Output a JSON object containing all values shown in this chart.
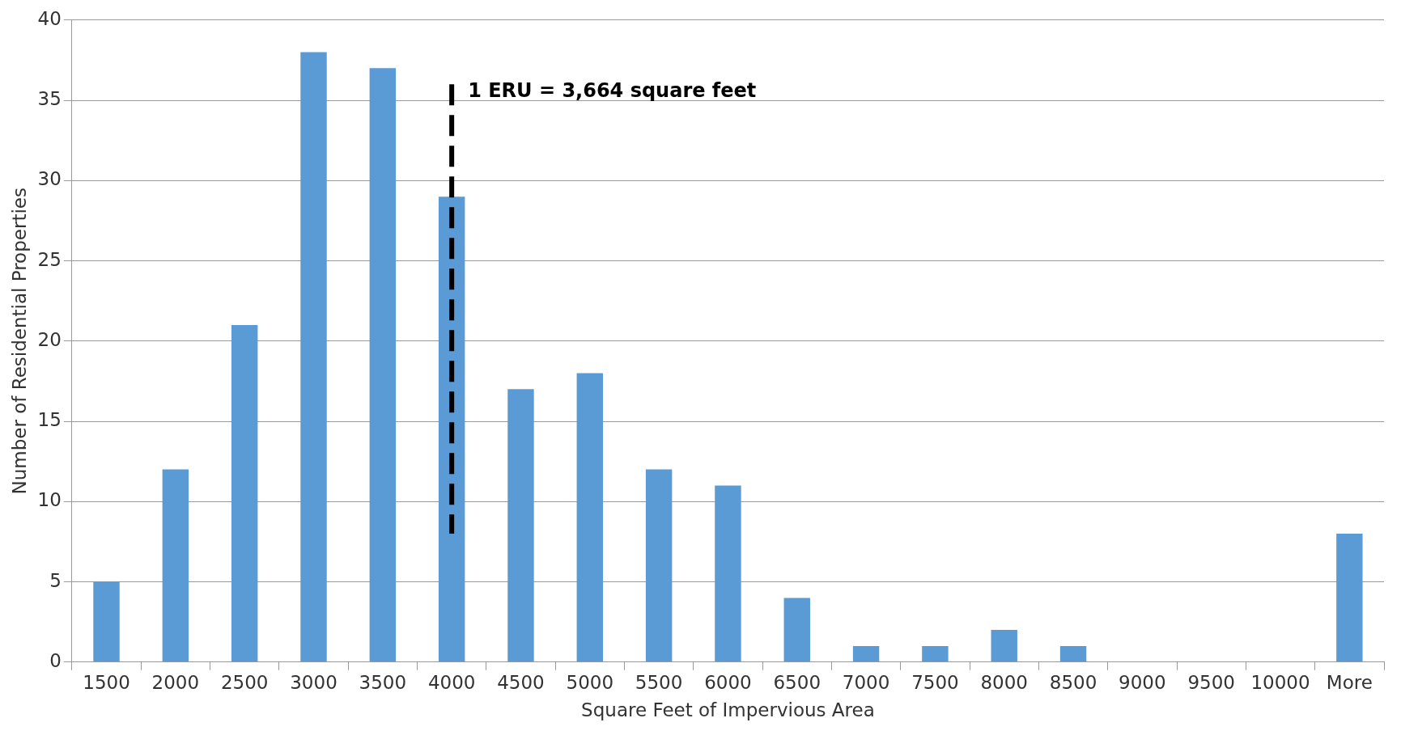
{
  "chart_data": {
    "type": "bar",
    "xlabel": "Square Feet of Impervious Area",
    "ylabel": "Number of Residential Properties",
    "categories": [
      "1500",
      "2000",
      "2500",
      "3000",
      "3500",
      "4000",
      "4500",
      "5000",
      "5500",
      "6000",
      "6500",
      "7000",
      "7500",
      "8000",
      "8500",
      "9000",
      "9500",
      "10000",
      "More"
    ],
    "values": [
      5,
      12,
      21,
      38,
      37,
      29,
      17,
      18,
      12,
      11,
      4,
      1,
      1,
      2,
      1,
      0,
      0,
      0,
      8
    ],
    "color": "#5b9bd5",
    "ylim": [
      0,
      40
    ],
    "yticks": [
      0,
      5,
      10,
      15,
      20,
      25,
      30,
      35,
      40
    ],
    "grid": "y",
    "legend": false,
    "ref_lines": [
      {
        "axis": "x",
        "value": "4000",
        "label": "1 ERU = 3,664 square feet",
        "color": "#000000",
        "line_style": "dashed"
      }
    ]
  }
}
